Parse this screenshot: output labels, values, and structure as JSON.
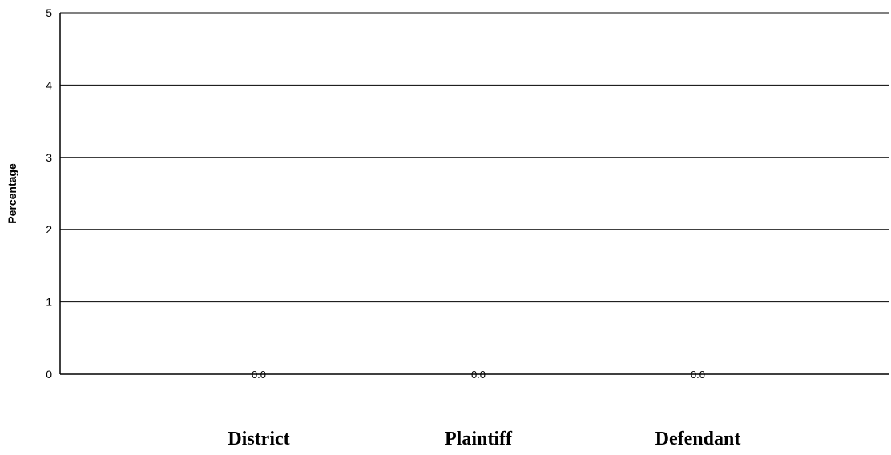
{
  "chart_data": {
    "type": "bar",
    "title": "",
    "xlabel": "",
    "ylabel": "Percentage",
    "categories": [
      "District",
      "Plaintiff",
      "Defendant"
    ],
    "values": [
      0.0,
      0.0,
      0.0
    ],
    "data_labels": [
      "0.0",
      "0.0",
      "0.0"
    ],
    "ylim": [
      0,
      5
    ],
    "yticks": [
      "0",
      "1",
      "2",
      "3",
      "4",
      "5"
    ],
    "grid": true,
    "legend": "none"
  }
}
